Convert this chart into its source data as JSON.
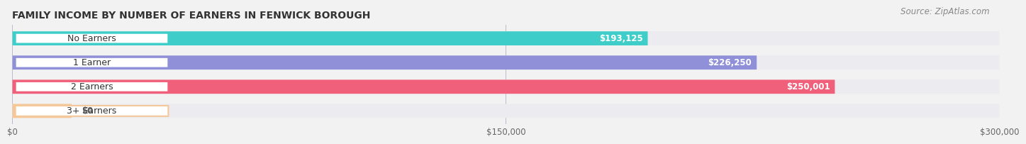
{
  "title": "FAMILY INCOME BY NUMBER OF EARNERS IN FENWICK BOROUGH",
  "source": "Source: ZipAtlas.com",
  "categories": [
    "No Earners",
    "1 Earner",
    "2 Earners",
    "3+ Earners"
  ],
  "values": [
    193125,
    226250,
    250001,
    0
  ],
  "bar_colors": [
    "#3ecdc8",
    "#9090d8",
    "#f0607a",
    "#f5c89a"
  ],
  "bar_labels": [
    "$193,125",
    "$226,250",
    "$250,001",
    "$0"
  ],
  "x_max": 300000,
  "x_tick_labels": [
    "$0",
    "$150,000",
    "$300,000"
  ],
  "background_color": "#f2f2f2",
  "bar_bg_color": "#e2e2ea",
  "row_bg_color": "#ebebf0",
  "label_fontsize": 9.0,
  "title_fontsize": 10.0,
  "source_fontsize": 8.5
}
